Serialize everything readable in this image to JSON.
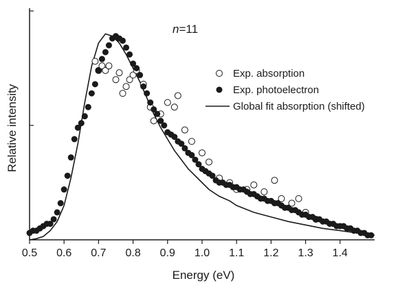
{
  "chart_data": {
    "type": "scatter",
    "annotation": {
      "italic": "n",
      "rest": "=11"
    },
    "xlabel": "Energy (eV)",
    "ylabel": "Relative intensity",
    "xlim": [
      0.5,
      1.5
    ],
    "ylim": [
      0,
      1.0
    ],
    "x_ticks": [
      0.5,
      0.6,
      0.7,
      0.8,
      0.9,
      1.0,
      1.1,
      1.2,
      1.3,
      1.4
    ],
    "x_tick_labels": [
      "0.5",
      "0.6",
      "0.7",
      "0.8",
      "0.9",
      "1.0",
      "1.1",
      "1.2",
      "1.3",
      "1.4"
    ],
    "grid": false,
    "legend_position": "right",
    "series": [
      {
        "name": "Exp. absorption",
        "marker": "open-circle",
        "points": [
          [
            0.69,
            0.78
          ],
          [
            0.7,
            0.74
          ],
          [
            0.71,
            0.76
          ],
          [
            0.72,
            0.74
          ],
          [
            0.73,
            0.76
          ],
          [
            0.75,
            0.7
          ],
          [
            0.76,
            0.73
          ],
          [
            0.77,
            0.64
          ],
          [
            0.78,
            0.67
          ],
          [
            0.79,
            0.7
          ],
          [
            0.8,
            0.72
          ],
          [
            0.81,
            0.74
          ],
          [
            0.83,
            0.68
          ],
          [
            0.85,
            0.58
          ],
          [
            0.86,
            0.52
          ],
          [
            0.88,
            0.55
          ],
          [
            0.9,
            0.6
          ],
          [
            0.92,
            0.58
          ],
          [
            0.93,
            0.63
          ],
          [
            0.95,
            0.48
          ],
          [
            0.97,
            0.43
          ],
          [
            1.0,
            0.38
          ],
          [
            1.02,
            0.34
          ],
          [
            1.05,
            0.27
          ],
          [
            1.08,
            0.25
          ],
          [
            1.1,
            0.22
          ],
          [
            1.13,
            0.22
          ],
          [
            1.15,
            0.24
          ],
          [
            1.18,
            0.21
          ],
          [
            1.21,
            0.26
          ],
          [
            1.23,
            0.18
          ],
          [
            1.26,
            0.16
          ],
          [
            1.28,
            0.18
          ],
          [
            1.3,
            0.12
          ],
          [
            1.33,
            0.09
          ]
        ]
      },
      {
        "name": "Exp. photoelectron",
        "marker": "filled-circle",
        "points": [
          [
            0.5,
            0.03
          ],
          [
            0.51,
            0.04
          ],
          [
            0.52,
            0.04
          ],
          [
            0.53,
            0.05
          ],
          [
            0.54,
            0.06
          ],
          [
            0.55,
            0.07
          ],
          [
            0.56,
            0.07
          ],
          [
            0.57,
            0.09
          ],
          [
            0.58,
            0.12
          ],
          [
            0.59,
            0.16
          ],
          [
            0.6,
            0.22
          ],
          [
            0.61,
            0.28
          ],
          [
            0.62,
            0.36
          ],
          [
            0.63,
            0.44
          ],
          [
            0.64,
            0.49
          ],
          [
            0.65,
            0.51
          ],
          [
            0.66,
            0.54
          ],
          [
            0.67,
            0.58
          ],
          [
            0.68,
            0.64
          ],
          [
            0.69,
            0.68
          ],
          [
            0.7,
            0.74
          ],
          [
            0.71,
            0.79
          ],
          [
            0.72,
            0.82
          ],
          [
            0.73,
            0.85
          ],
          [
            0.74,
            0.88
          ],
          [
            0.75,
            0.89
          ],
          [
            0.76,
            0.88
          ],
          [
            0.77,
            0.87
          ],
          [
            0.78,
            0.84
          ],
          [
            0.79,
            0.81
          ],
          [
            0.8,
            0.77
          ],
          [
            0.81,
            0.75
          ],
          [
            0.82,
            0.72
          ],
          [
            0.83,
            0.67
          ],
          [
            0.84,
            0.64
          ],
          [
            0.85,
            0.6
          ],
          [
            0.86,
            0.57
          ],
          [
            0.87,
            0.55
          ],
          [
            0.88,
            0.52
          ],
          [
            0.89,
            0.5
          ],
          [
            0.9,
            0.47
          ],
          [
            0.91,
            0.46
          ],
          [
            0.92,
            0.45
          ],
          [
            0.93,
            0.43
          ],
          [
            0.94,
            0.42
          ],
          [
            0.95,
            0.4
          ],
          [
            0.96,
            0.38
          ],
          [
            0.97,
            0.37
          ],
          [
            0.98,
            0.35
          ],
          [
            0.99,
            0.33
          ],
          [
            1.0,
            0.31
          ],
          [
            1.01,
            0.3
          ],
          [
            1.02,
            0.29
          ],
          [
            1.03,
            0.28
          ],
          [
            1.04,
            0.26
          ],
          [
            1.05,
            0.25
          ],
          [
            1.06,
            0.25
          ],
          [
            1.07,
            0.24
          ],
          [
            1.08,
            0.24
          ],
          [
            1.09,
            0.23
          ],
          [
            1.1,
            0.23
          ],
          [
            1.11,
            0.22
          ],
          [
            1.12,
            0.22
          ],
          [
            1.13,
            0.21
          ],
          [
            1.14,
            0.2
          ],
          [
            1.15,
            0.2
          ],
          [
            1.16,
            0.19
          ],
          [
            1.17,
            0.18
          ],
          [
            1.18,
            0.18
          ],
          [
            1.19,
            0.17
          ],
          [
            1.2,
            0.17
          ],
          [
            1.21,
            0.16
          ],
          [
            1.22,
            0.16
          ],
          [
            1.23,
            0.15
          ],
          [
            1.24,
            0.14
          ],
          [
            1.25,
            0.14
          ],
          [
            1.26,
            0.13
          ],
          [
            1.27,
            0.13
          ],
          [
            1.28,
            0.12
          ],
          [
            1.29,
            0.11
          ],
          [
            1.3,
            0.11
          ],
          [
            1.31,
            0.1
          ],
          [
            1.32,
            0.1
          ],
          [
            1.33,
            0.09
          ],
          [
            1.34,
            0.09
          ],
          [
            1.35,
            0.08
          ],
          [
            1.36,
            0.08
          ],
          [
            1.37,
            0.07
          ],
          [
            1.38,
            0.07
          ],
          [
            1.39,
            0.06
          ],
          [
            1.4,
            0.06
          ],
          [
            1.41,
            0.06
          ],
          [
            1.42,
            0.05
          ],
          [
            1.43,
            0.05
          ],
          [
            1.44,
            0.04
          ],
          [
            1.45,
            0.04
          ],
          [
            1.46,
            0.03
          ],
          [
            1.47,
            0.03
          ],
          [
            1.48,
            0.02
          ],
          [
            1.49,
            0.02
          ]
        ]
      },
      {
        "name": "Global fit absorption (shifted)",
        "marker": "line",
        "points": [
          [
            0.5,
            0.0
          ],
          [
            0.52,
            0.005
          ],
          [
            0.54,
            0.015
          ],
          [
            0.56,
            0.04
          ],
          [
            0.58,
            0.08
          ],
          [
            0.6,
            0.15
          ],
          [
            0.62,
            0.27
          ],
          [
            0.64,
            0.42
          ],
          [
            0.66,
            0.6
          ],
          [
            0.68,
            0.76
          ],
          [
            0.7,
            0.86
          ],
          [
            0.72,
            0.9
          ],
          [
            0.74,
            0.89
          ],
          [
            0.76,
            0.86
          ],
          [
            0.78,
            0.81
          ],
          [
            0.8,
            0.75
          ],
          [
            0.82,
            0.69
          ],
          [
            0.84,
            0.62
          ],
          [
            0.86,
            0.55
          ],
          [
            0.88,
            0.49
          ],
          [
            0.9,
            0.44
          ],
          [
            0.92,
            0.39
          ],
          [
            0.94,
            0.35
          ],
          [
            0.96,
            0.31
          ],
          [
            0.98,
            0.28
          ],
          [
            1.0,
            0.25
          ],
          [
            1.02,
            0.22
          ],
          [
            1.05,
            0.19
          ],
          [
            1.08,
            0.17
          ],
          [
            1.1,
            0.15
          ],
          [
            1.15,
            0.12
          ],
          [
            1.2,
            0.1
          ],
          [
            1.25,
            0.08
          ],
          [
            1.3,
            0.065
          ],
          [
            1.35,
            0.05
          ],
          [
            1.4,
            0.04
          ],
          [
            1.45,
            0.03
          ],
          [
            1.5,
            0.02
          ]
        ]
      }
    ]
  }
}
